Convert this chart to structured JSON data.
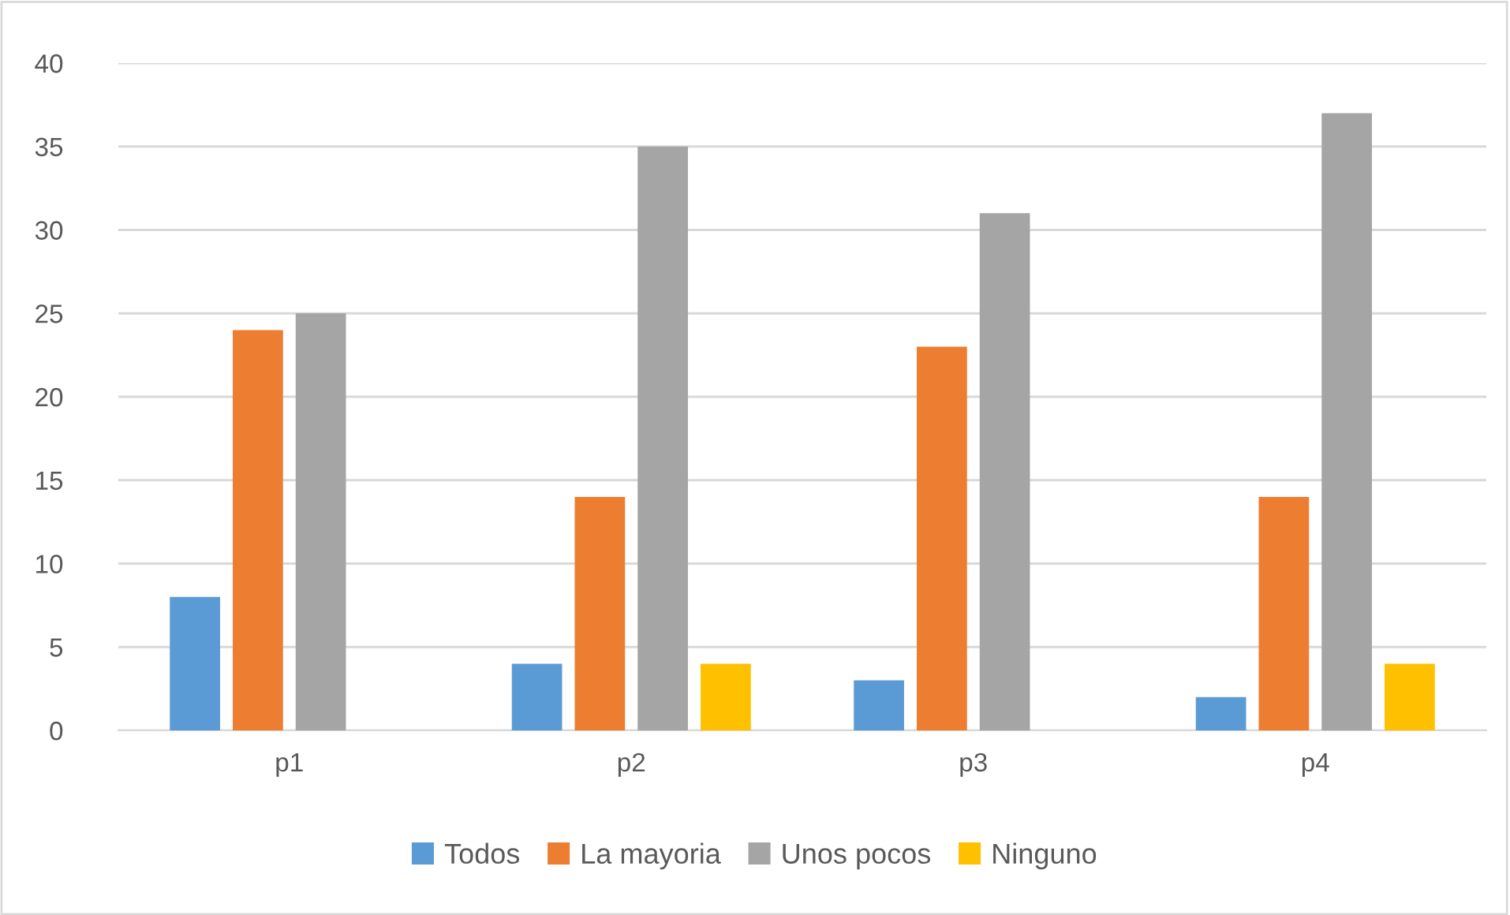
{
  "chart_data": {
    "type": "bar",
    "categories": [
      "p1",
      "p2",
      "p3",
      "p4"
    ],
    "series": [
      {
        "name": "Todos",
        "color": "#5b9bd5",
        "values": [
          8,
          4,
          3,
          2
        ]
      },
      {
        "name": "La mayoria",
        "color": "#ed7d31",
        "values": [
          24,
          14,
          23,
          14
        ]
      },
      {
        "name": "Unos pocos",
        "color": "#a5a5a5",
        "values": [
          25,
          35,
          31,
          37
        ]
      },
      {
        "name": "Ninguno",
        "color": "#ffc000",
        "values": [
          0,
          4,
          0,
          4
        ]
      }
    ],
    "ylim": [
      0,
      40
    ],
    "yticks": [
      0,
      5,
      10,
      15,
      20,
      25,
      30,
      35,
      40
    ],
    "grid": "y",
    "legend": "bottom"
  }
}
